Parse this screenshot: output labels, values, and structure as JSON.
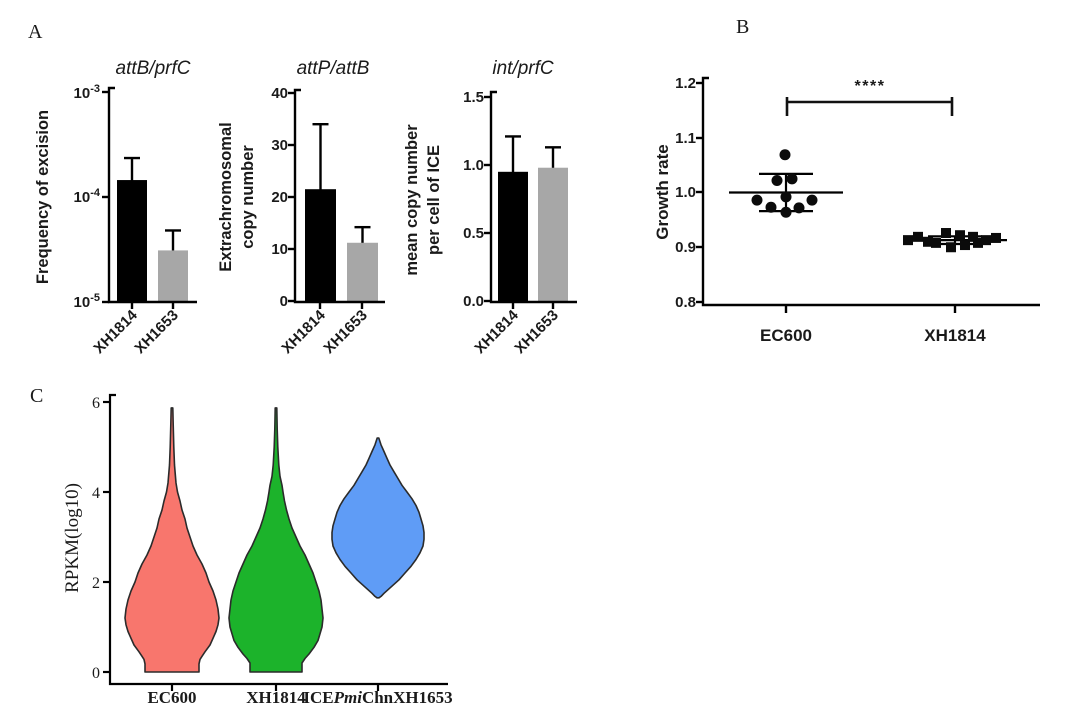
{
  "panels": {
    "a": {
      "letter": "A"
    },
    "b": {
      "letter": "B"
    },
    "c": {
      "letter": "C"
    }
  },
  "chart_data": [
    {
      "type": "bar",
      "title": "attB/prfC",
      "ylabel": "Frequency of excision",
      "yscale": "log10",
      "ylim": [
        1e-05,
        0.001
      ],
      "ytick_base": "10",
      "ytick_exps": [
        "-3",
        "-4",
        "-5"
      ],
      "categories": [
        "XH1814",
        "XH1653"
      ],
      "values": [
        0.000145,
        3.1e-05
      ],
      "error_upper": [
        0.000235,
        4.8e-05
      ],
      "bar_colors": [
        "#000000",
        "#a7a7a7"
      ]
    },
    {
      "type": "bar",
      "title": "attP/attB",
      "ylabel_lines": [
        "Extrachromosomal",
        "copy number"
      ],
      "yscale": "linear",
      "ylim": [
        0,
        40
      ],
      "ytick_labels": [
        "40",
        "30",
        "20",
        "10",
        "0"
      ],
      "categories": [
        "XH1814",
        "XH1653"
      ],
      "values": [
        21.5,
        11.2
      ],
      "error_upper": [
        34,
        14.2
      ],
      "bar_colors": [
        "#000000",
        "#a7a7a7"
      ]
    },
    {
      "type": "bar",
      "title": "int/prfC",
      "ylabel_lines": [
        "mean copy number",
        "per cell of ICE"
      ],
      "yscale": "linear",
      "ylim": [
        0,
        1.5
      ],
      "ytick_labels": [
        "1.5",
        "1.0",
        "0.5",
        "0.0"
      ],
      "categories": [
        "XH1814",
        "XH1653"
      ],
      "values": [
        0.95,
        0.98
      ],
      "error_upper": [
        1.21,
        1.13
      ],
      "bar_colors": [
        "#000000",
        "#a7a7a7"
      ]
    },
    {
      "type": "scatter",
      "ylabel": "Growth rate",
      "ylim": [
        0.8,
        1.2
      ],
      "ytick_labels": [
        "1.2",
        "1.1",
        "1.0",
        "0.9",
        "0.8"
      ],
      "significance": "****",
      "groups": [
        {
          "name": "EC600",
          "marker": "circle",
          "mean": 1.0,
          "sd_upper": 1.034,
          "sd_lower": 0.966,
          "points": [
            [
              -1,
              1.069
            ],
            [
              -9,
              1.022
            ],
            [
              6,
              1.025
            ],
            [
              -29,
              0.986
            ],
            [
              26,
              0.986
            ],
            [
              -15,
              0.973
            ],
            [
              0,
              0.992
            ],
            [
              0,
              0.964
            ],
            [
              13,
              0.972
            ]
          ]
        },
        {
          "name": "XH1814",
          "marker": "square",
          "mean": 0.913,
          "sd_upper": 0.92,
          "sd_lower": 0.906,
          "points": [
            [
              -47,
              0.913
            ],
            [
              -37,
              0.919
            ],
            [
              -27,
              0.91
            ],
            [
              -19,
              0.908
            ],
            [
              -9,
              0.926
            ],
            [
              -4,
              0.9
            ],
            [
              5,
              0.922
            ],
            [
              10,
              0.904
            ],
            [
              18,
              0.919
            ],
            [
              23,
              0.908
            ],
            [
              31,
              0.913
            ],
            [
              41,
              0.917
            ]
          ]
        }
      ]
    },
    {
      "type": "violin",
      "ylabel": "RPKM(log10)",
      "ylim": [
        0,
        6
      ],
      "ytick_labels": [
        "6",
        "4",
        "2",
        "0"
      ],
      "categories": [
        "EC600",
        "XH1814",
        "ICEPmiChnXH1653"
      ],
      "xlabel3_parts": [
        "ICE",
        "Pmi",
        "ChnXH1653"
      ],
      "series": [
        {
          "name": "EC600",
          "color": "#F8766D",
          "profile": [
            [
              5.87,
              0.8
            ],
            [
              5.5,
              1.2
            ],
            [
              5.0,
              1.8
            ],
            [
              4.6,
              2.5
            ],
            [
              4.2,
              4
            ],
            [
              4.0,
              5.5
            ],
            [
              3.8,
              8
            ],
            [
              3.6,
              10
            ],
            [
              3.4,
              13
            ],
            [
              3.2,
              15
            ],
            [
              3.0,
              18
            ],
            [
              2.8,
              21
            ],
            [
              2.6,
              25
            ],
            [
              2.4,
              30
            ],
            [
              2.2,
              34
            ],
            [
              2.0,
              37
            ],
            [
              1.8,
              41
            ],
            [
              1.6,
              44
            ],
            [
              1.4,
              46
            ],
            [
              1.2,
              47
            ],
            [
              1.05,
              46
            ],
            [
              0.9,
              44
            ],
            [
              0.75,
              41
            ],
            [
              0.6,
              38
            ],
            [
              0.45,
              33
            ],
            [
              0.35,
              30
            ],
            [
              0.28,
              28
            ],
            [
              0.18,
              27
            ],
            [
              0.08,
              27
            ],
            [
              0,
              27
            ]
          ]
        },
        {
          "name": "XH1814",
          "color": "#1CB32B",
          "profile": [
            [
              5.87,
              0.8
            ],
            [
              5.4,
              1.2
            ],
            [
              5.0,
              1.8
            ],
            [
              4.6,
              2.8
            ],
            [
              4.35,
              4
            ],
            [
              4.15,
              6
            ],
            [
              4.0,
              7
            ],
            [
              3.8,
              8.5
            ],
            [
              3.6,
              10.5
            ],
            [
              3.4,
              13
            ],
            [
              3.2,
              16
            ],
            [
              3.0,
              20
            ],
            [
              2.8,
              24
            ],
            [
              2.6,
              29
            ],
            [
              2.4,
              33
            ],
            [
              2.2,
              37
            ],
            [
              2.0,
              40
            ],
            [
              1.8,
              43
            ],
            [
              1.6,
              45
            ],
            [
              1.4,
              46
            ],
            [
              1.2,
              47
            ],
            [
              1.0,
              46
            ],
            [
              0.85,
              44
            ],
            [
              0.7,
              42
            ],
            [
              0.55,
              38
            ],
            [
              0.4,
              33
            ],
            [
              0.3,
              29
            ],
            [
              0.2,
              26
            ],
            [
              0.1,
              26
            ],
            [
              0,
              26
            ]
          ]
        },
        {
          "name": "ICEPmiChnXH1653",
          "color": "#5F9CF6",
          "profile": [
            [
              5.2,
              0.8
            ],
            [
              5.05,
              3
            ],
            [
              4.9,
              6
            ],
            [
              4.75,
              9
            ],
            [
              4.6,
              12
            ],
            [
              4.45,
              16
            ],
            [
              4.3,
              20
            ],
            [
              4.15,
              24
            ],
            [
              4.0,
              29
            ],
            [
              3.85,
              34
            ],
            [
              3.7,
              38
            ],
            [
              3.55,
              41
            ],
            [
              3.4,
              43
            ],
            [
              3.25,
              45
            ],
            [
              3.1,
              46
            ],
            [
              2.95,
              46
            ],
            [
              2.8,
              45
            ],
            [
              2.65,
              42
            ],
            [
              2.5,
              38
            ],
            [
              2.35,
              33
            ],
            [
              2.2,
              27
            ],
            [
              2.05,
              21
            ],
            [
              1.95,
              16
            ],
            [
              1.85,
              11
            ],
            [
              1.75,
              6
            ],
            [
              1.68,
              3
            ],
            [
              1.65,
              1
            ]
          ]
        }
      ]
    }
  ]
}
